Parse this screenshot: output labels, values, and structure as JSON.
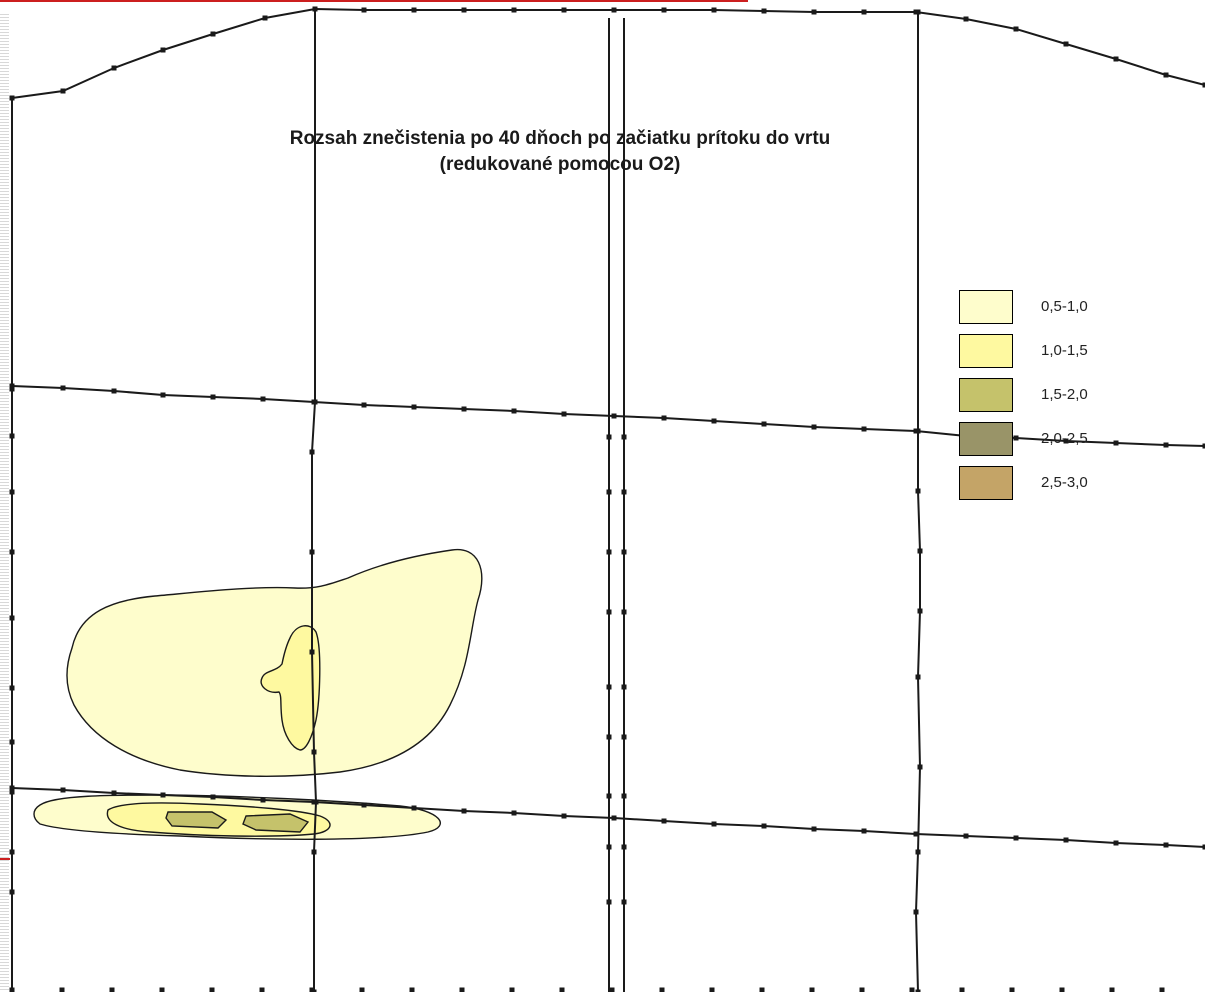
{
  "title": {
    "line1": "Rozsah znečistenia po 40 dňoch po začiatku prítoku do vrtu",
    "line2": "(redukované pomocou O2)"
  },
  "legend": [
    {
      "label": "0,5-1,0",
      "color": "#fefdcc"
    },
    {
      "label": "1,0-1,5",
      "color": "#fef9a0"
    },
    {
      "label": "1,5-2,0",
      "color": "#c5c26b"
    },
    {
      "label": "2,0-2,5",
      "color": "#999468"
    },
    {
      "label": "2,5-3,0",
      "color": "#c4a467"
    }
  ],
  "colors": {
    "lines": "#1a1a1a",
    "accent": "#cc1f1f"
  }
}
